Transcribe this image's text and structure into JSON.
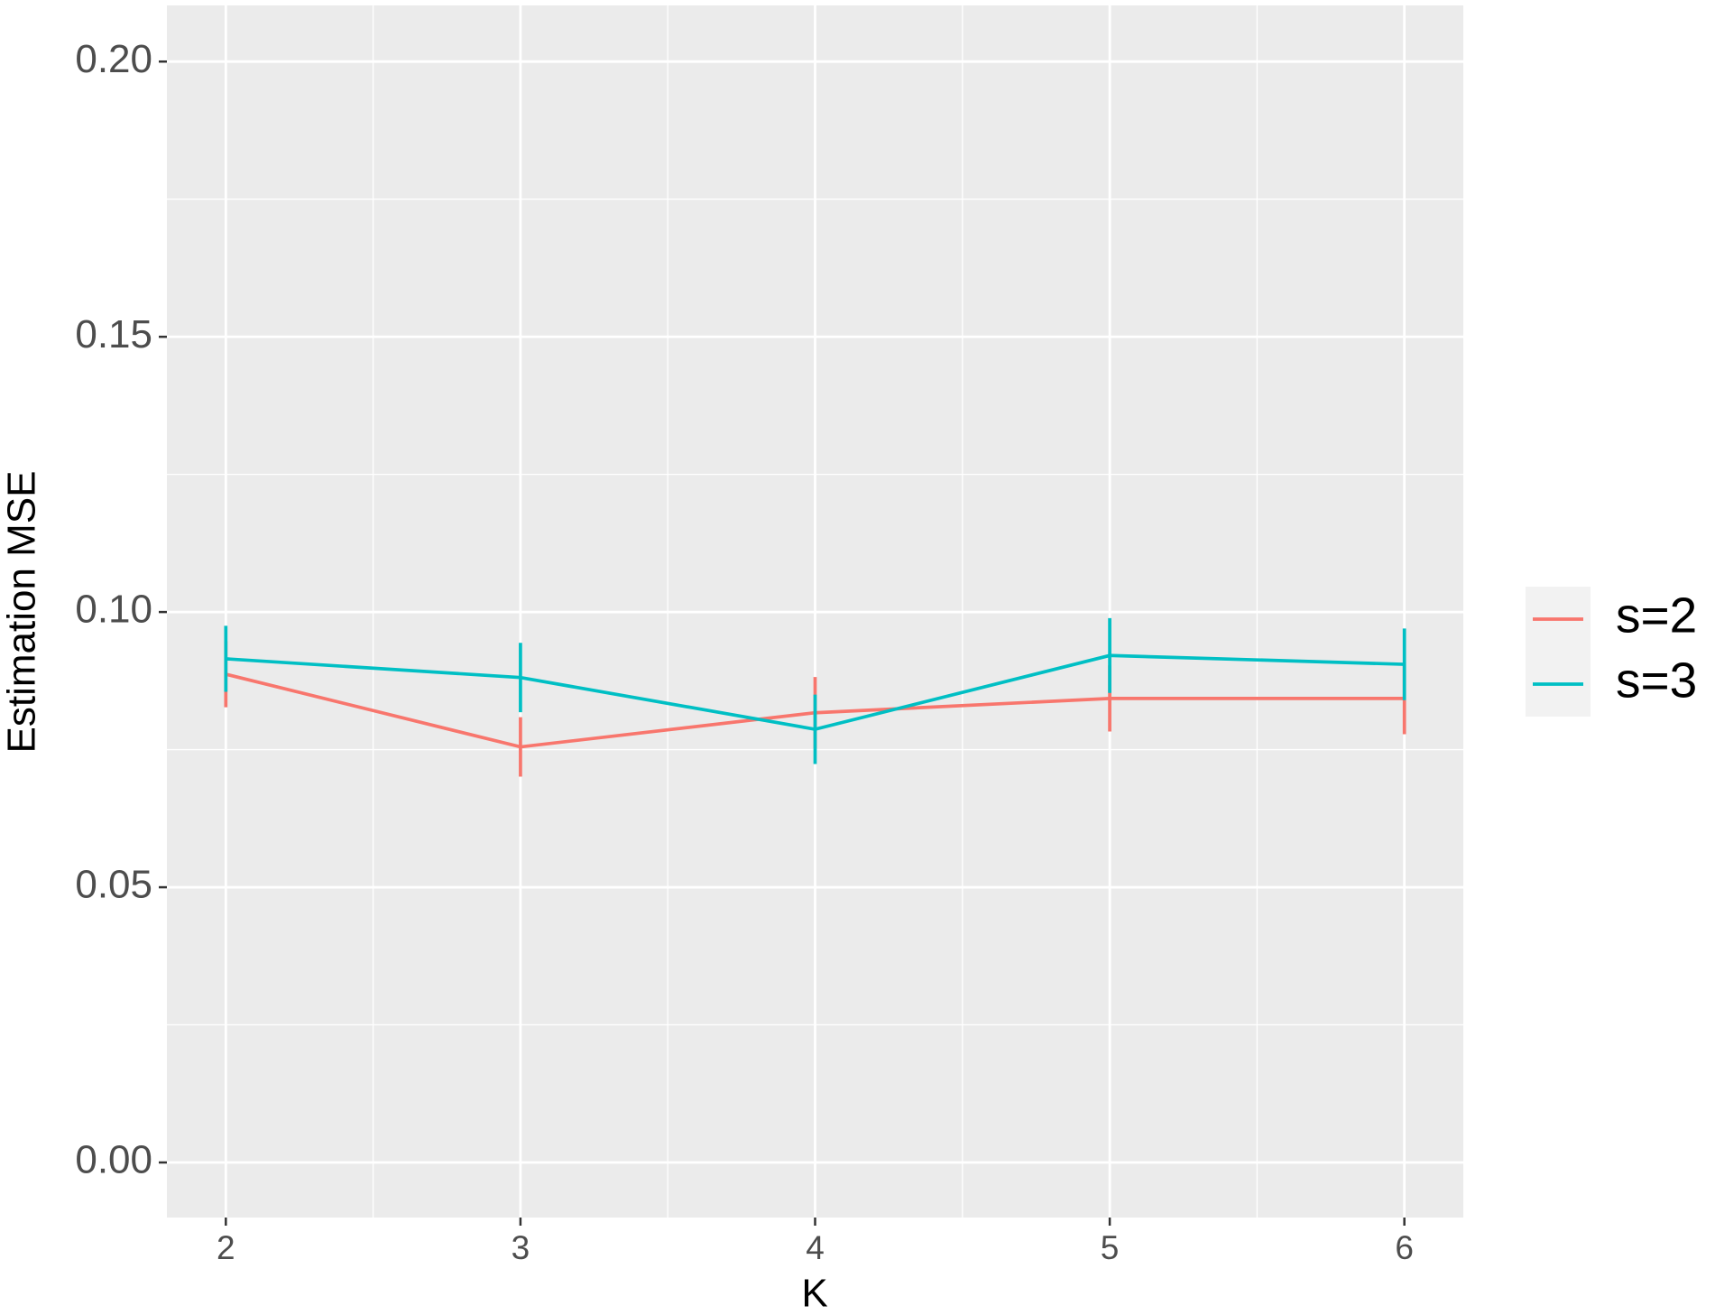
{
  "chart_data": {
    "type": "line",
    "x_label": "K",
    "y_label": "Estimation MSE",
    "x": [
      2,
      3,
      4,
      5,
      6
    ],
    "series": [
      {
        "name": "s=2",
        "color": "#F8766D",
        "values": [
          0.0887,
          0.0755,
          0.0817,
          0.0843,
          0.0843
        ],
        "errors": [
          0.006,
          0.0054,
          0.0065,
          0.006,
          0.0065
        ]
      },
      {
        "name": "s=3",
        "color": "#00BFC4",
        "values": [
          0.0915,
          0.0881,
          0.0787,
          0.0921,
          0.0905
        ],
        "errors": [
          0.006,
          0.0063,
          0.0063,
          0.0068,
          0.0065
        ]
      }
    ],
    "xlim": [
      1.8,
      6.2
    ],
    "xticks": [
      2,
      3,
      4,
      5,
      6
    ],
    "ylim": [
      -0.01,
      0.2102
    ],
    "yticks": [
      {
        "value": 0,
        "label": "0.00"
      },
      {
        "value": 0.05,
        "label": "0.05"
      },
      {
        "value": 0.1,
        "label": "0.10"
      },
      {
        "value": 0.15,
        "label": "0.15"
      },
      {
        "value": 0.2,
        "label": "0.20"
      }
    ],
    "grid": true,
    "legend": "right"
  }
}
